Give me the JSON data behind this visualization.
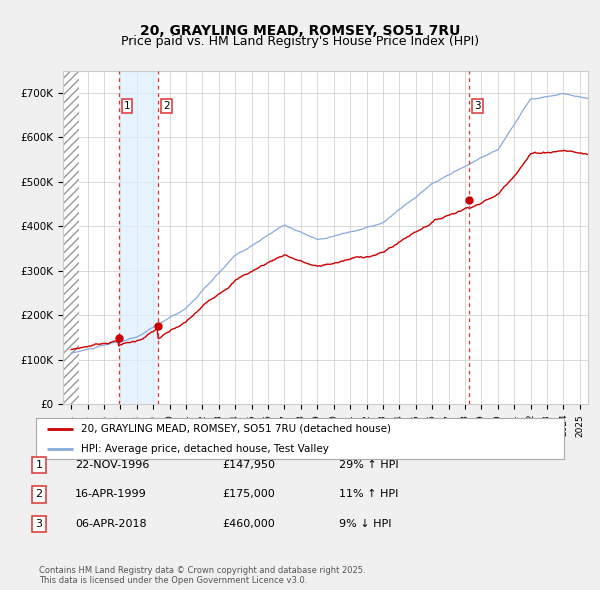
{
  "title": "20, GRAYLING MEAD, ROMSEY, SO51 7RU",
  "subtitle": "Price paid vs. HM Land Registry's House Price Index (HPI)",
  "ylim": [
    0,
    750000
  ],
  "yticks": [
    0,
    100000,
    200000,
    300000,
    400000,
    500000,
    600000,
    700000
  ],
  "ytick_labels": [
    "£0",
    "£100K",
    "£200K",
    "£300K",
    "£400K",
    "£500K",
    "£600K",
    "£700K"
  ],
  "xlim_start": 1993.5,
  "xlim_end": 2025.5,
  "hatch_end": 1994.2,
  "shade_start": 1996.9,
  "shade_end": 1999.3,
  "sale_dates": [
    1996.9,
    1999.3,
    2018.27
  ],
  "sale_prices": [
    147950,
    175000,
    460000
  ],
  "sale_labels": [
    "1",
    "2",
    "3"
  ],
  "vline_color": "#dd3333",
  "red_line_color": "#cc0000",
  "blue_line_color": "#88aadd",
  "shade_color": "#ddeeff",
  "background_color": "#f0f0f0",
  "plot_bg_color": "#ffffff",
  "grid_color": "#cccccc",
  "legend_entries": [
    "20, GRAYLING MEAD, ROMSEY, SO51 7RU (detached house)",
    "HPI: Average price, detached house, Test Valley"
  ],
  "table_rows": [
    [
      "1",
      "22-NOV-1996",
      "£147,950",
      "29% ↑ HPI"
    ],
    [
      "2",
      "16-APR-1999",
      "£175,000",
      "11% ↑ HPI"
    ],
    [
      "3",
      "06-APR-2018",
      "£460,000",
      "9% ↓ HPI"
    ]
  ],
  "footer_text": "Contains HM Land Registry data © Crown copyright and database right 2025.\nThis data is licensed under the Open Government Licence v3.0.",
  "title_fontsize": 10,
  "subtitle_fontsize": 9,
  "label_fontsize": 8
}
